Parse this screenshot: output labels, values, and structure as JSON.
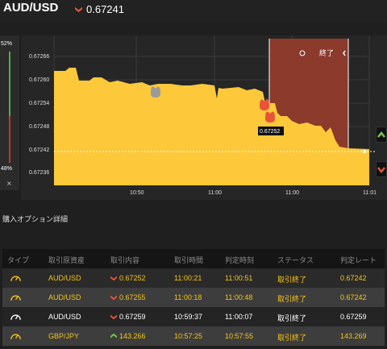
{
  "header": {
    "pair": "AUD/USD",
    "direction_icon": "down-arrow-icon",
    "rate": "0.67241"
  },
  "gauge": {
    "top_pct": "52%",
    "bottom_pct": "48%",
    "close_label": "×"
  },
  "chart_data": {
    "type": "area",
    "y_ticks": [
      "0.67266",
      "0.67260",
      "0.67254",
      "0.67248",
      "0.67242",
      "0.67236"
    ],
    "x_ticks": [
      "10:50",
      "11:00",
      "11:00",
      "11:01"
    ],
    "current_rate": 0.67241,
    "entry_label": "0.67252",
    "end_label": "終了",
    "colors": {
      "fill": "#fdc83a",
      "end_zone": "#8b3a2b",
      "marker": "#e8533a"
    }
  },
  "section_title": "購入オプション詳細",
  "table": {
    "columns": [
      "タイプ",
      "取引原資産",
      "取引内容",
      "取引時間",
      "判定時刻",
      "ステータス",
      "判定レート"
    ],
    "rows": [
      {
        "asset": "AUD/USD",
        "direction": "down",
        "content": "0.67252",
        "time": "11:00:21",
        "judge": "11:00:51",
        "status": "取引終了",
        "rate": "0.67242",
        "text_color": "yellow"
      },
      {
        "asset": "AUD/USD",
        "direction": "down",
        "content": "0.67255",
        "time": "11:00:18",
        "judge": "11:00:48",
        "status": "取引終了",
        "rate": "0.67242",
        "text_color": "yellow"
      },
      {
        "asset": "AUD/USD",
        "direction": "down",
        "content": "0.67259",
        "time": "10:59:37",
        "judge": "11:00:07",
        "status": "取引終了",
        "rate": "0.67259",
        "text_color": "white"
      },
      {
        "asset": "GBP/JPY",
        "direction": "up",
        "content": "143.266",
        "time": "10:57:25",
        "judge": "10:57:55",
        "status": "取引終了",
        "rate": "143.269",
        "text_color": "yellow"
      }
    ]
  }
}
